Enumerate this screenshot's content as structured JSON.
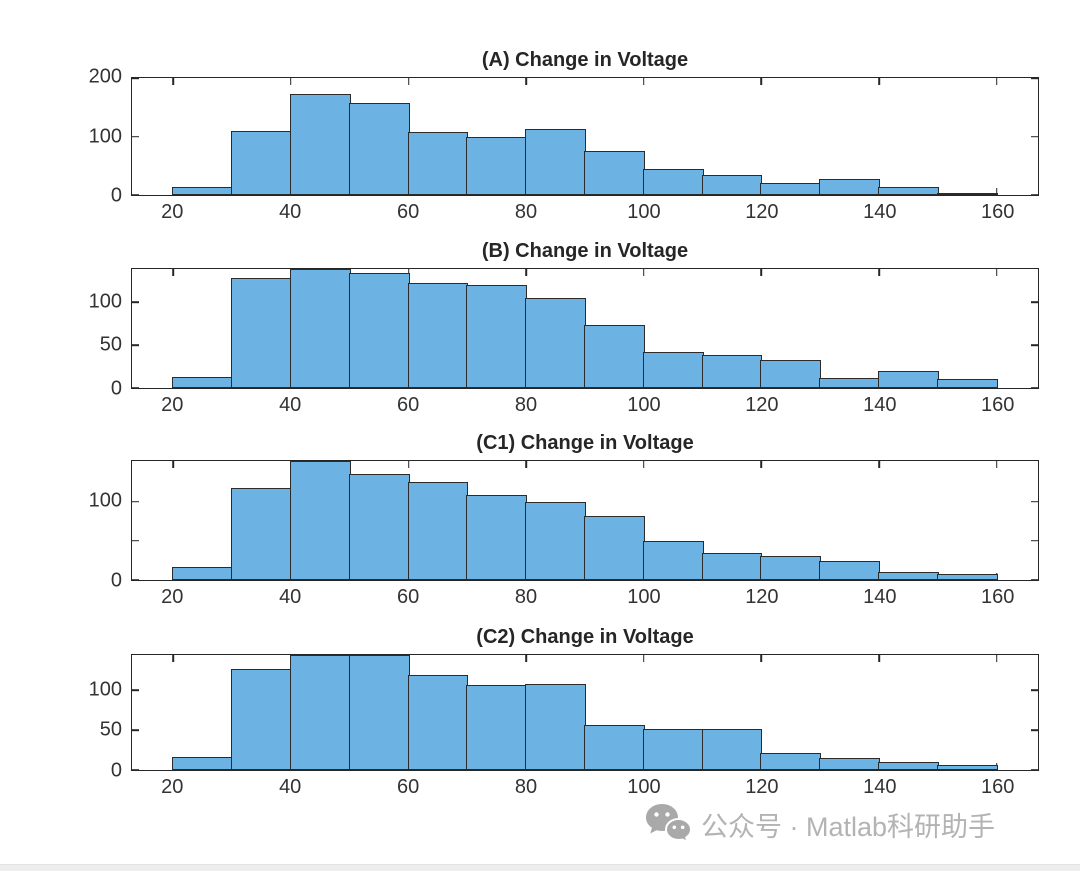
{
  "figure": {
    "kind": "MATLAB figure with four stacked histogram subplots",
    "background": "#ffffff"
  },
  "colors": {
    "bar_fill": "#6cb2e3",
    "bar_edge": "#2b2b2b",
    "axis_color": "#262626",
    "tick_text": "#333333",
    "watermark_color": "#b3b3b3"
  },
  "watermark": {
    "icon": "wechat-icon",
    "text": "公众号 · Matlab科研助手"
  },
  "chart_data": [
    {
      "type": "bar",
      "variant": "histogram",
      "title": "(A) Change in Voltage",
      "xlabel": "",
      "ylabel": "",
      "grid": false,
      "legend": null,
      "bin_edges": [
        20,
        30,
        40,
        50,
        60,
        70,
        80,
        90,
        100,
        110,
        120,
        130,
        140,
        150,
        160
      ],
      "counts": [
        14,
        110,
        172,
        158,
        107,
        100,
        112,
        75,
        45,
        34,
        21,
        28,
        13,
        3
      ],
      "xlim": [
        13,
        167
      ],
      "ylim": [
        0,
        200
      ],
      "xticks": [
        20,
        40,
        60,
        80,
        100,
        120,
        140,
        160
      ],
      "yticks": [
        {
          "value": 0,
          "label": "0"
        },
        {
          "value": 100,
          "label": "100"
        },
        {
          "value": 200,
          "label": "200"
        }
      ]
    },
    {
      "type": "bar",
      "variant": "histogram",
      "title": "(B) Change in Voltage",
      "xlabel": "",
      "ylabel": "",
      "grid": false,
      "legend": null,
      "bin_edges": [
        20,
        30,
        40,
        50,
        60,
        70,
        80,
        90,
        100,
        110,
        120,
        130,
        140,
        150,
        160
      ],
      "counts": [
        13,
        129,
        139,
        134,
        123,
        120,
        105,
        74,
        42,
        39,
        33,
        12,
        20,
        11
      ],
      "xlim": [
        13,
        167
      ],
      "ylim": [
        0,
        139
      ],
      "xticks": [
        20,
        40,
        60,
        80,
        100,
        120,
        140,
        160
      ],
      "yticks": [
        {
          "value": 0,
          "label": "0"
        },
        {
          "value": 50,
          "label": "50"
        },
        {
          "value": 100,
          "label": "100"
        }
      ]
    },
    {
      "type": "bar",
      "variant": "histogram",
      "title": "(C1) Change in Voltage",
      "xlabel": "",
      "ylabel": "",
      "grid": false,
      "legend": null,
      "bin_edges": [
        20,
        30,
        40,
        50,
        60,
        70,
        80,
        90,
        100,
        110,
        120,
        130,
        140,
        150,
        160
      ],
      "counts": [
        17,
        118,
        152,
        136,
        125,
        108,
        100,
        82,
        50,
        35,
        31,
        24,
        10,
        8
      ],
      "xlim": [
        13,
        167
      ],
      "ylim": [
        0,
        152
      ],
      "xticks": [
        20,
        40,
        60,
        80,
        100,
        120,
        140,
        160
      ],
      "yticks": [
        {
          "value": 0,
          "label": "0"
        },
        {
          "value": 50,
          "label": ""
        },
        {
          "value": 100,
          "label": "100"
        }
      ]
    },
    {
      "type": "bar",
      "variant": "histogram",
      "title": "(C2) Change in Voltage",
      "xlabel": "",
      "ylabel": "",
      "grid": false,
      "legend": null,
      "bin_edges": [
        20,
        30,
        40,
        50,
        60,
        70,
        80,
        90,
        100,
        110,
        120,
        130,
        140,
        150,
        160
      ],
      "counts": [
        16,
        126,
        144,
        144,
        119,
        106,
        108,
        56,
        51,
        51,
        21,
        15,
        10,
        6
      ],
      "xlim": [
        13,
        167
      ],
      "ylim": [
        0,
        144
      ],
      "xticks": [
        20,
        40,
        60,
        80,
        100,
        120,
        140,
        160
      ],
      "yticks": [
        {
          "value": 0,
          "label": "0"
        },
        {
          "value": 50,
          "label": "50"
        },
        {
          "value": 100,
          "label": "100"
        }
      ]
    }
  ]
}
